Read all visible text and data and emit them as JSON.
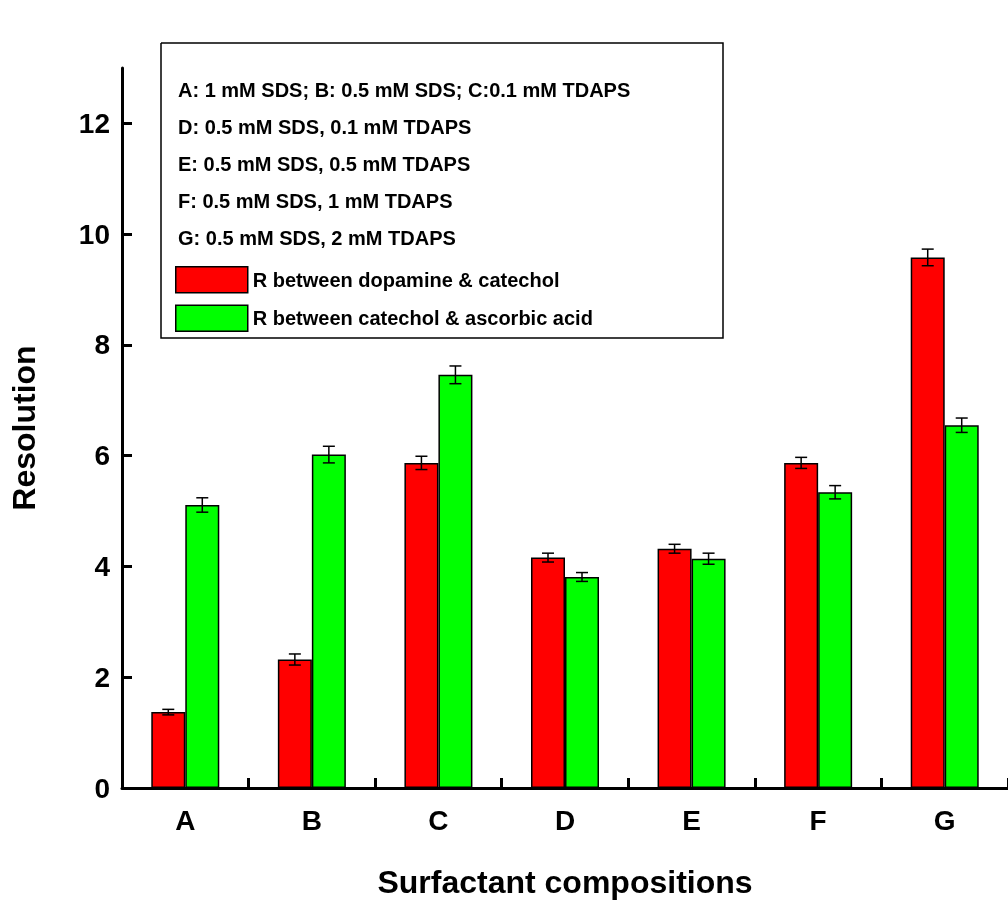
{
  "chart_data": {
    "type": "bar",
    "xlabel": "Surfactant compositions",
    "ylabel": "Resolution",
    "categories": [
      "A",
      "B",
      "C",
      "D",
      "E",
      "F",
      "G"
    ],
    "series": [
      {
        "name": "R between dopamine & catechol",
        "color": "#ff0000",
        "values": [
          1.37,
          2.32,
          5.87,
          4.16,
          4.32,
          5.87,
          9.58
        ],
        "errors": [
          0.05,
          0.1,
          0.12,
          0.08,
          0.08,
          0.1,
          0.15
        ]
      },
      {
        "name": "R between catechol & ascorbic acid",
        "color": "#00ff00",
        "values": [
          5.11,
          6.02,
          7.46,
          3.81,
          4.14,
          5.34,
          6.55
        ],
        "errors": [
          0.13,
          0.15,
          0.16,
          0.08,
          0.1,
          0.12,
          0.13
        ]
      }
    ],
    "annotations": [
      "A: 1 mM SDS; B: 0.5 mM SDS; C:0.1 mM TDAPS",
      "D: 0.5 mM SDS, 0.1 mM TDAPS",
      "E: 0.5 mM SDS, 0.5 mM TDAPS",
      "F: 0.5 mM SDS, 1 mM TDAPS",
      "G: 0.5 mM SDS, 2 mM TDAPS"
    ],
    "ylim": [
      0,
      13
    ],
    "yticks": [
      0,
      2,
      4,
      6,
      8,
      10,
      12
    ],
    "grid": false,
    "legend": "top left"
  }
}
